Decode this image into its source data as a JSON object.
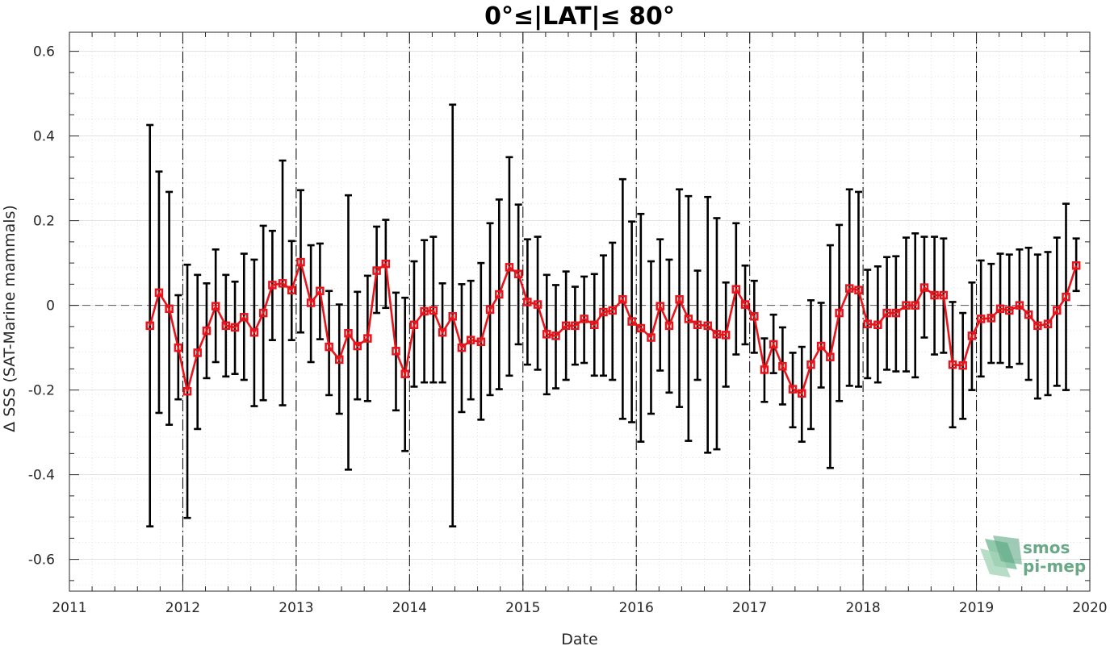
{
  "chart_data": {
    "type": "line",
    "title": "0°≤|LAT|≤ 80°",
    "xlabel": "Date",
    "ylabel": "Δ SSS (SAT-Marine mammals)",
    "xlim": [
      2011,
      2020
    ],
    "ylim": [
      -0.675,
      0.645
    ],
    "x_ticks": [
      2011,
      2012,
      2013,
      2014,
      2015,
      2016,
      2017,
      2018,
      2019,
      2020
    ],
    "x_tick_labels": [
      "2011",
      "2012",
      "2013",
      "2014",
      "2015",
      "2016",
      "2017",
      "2018",
      "2019",
      "2020"
    ],
    "y_ticks": [
      -0.6,
      -0.4,
      -0.2,
      0,
      0.2,
      0.4,
      0.6
    ],
    "y_tick_labels": [
      "-0.6",
      "-0.4",
      "-0.2",
      "0",
      "0.2",
      "0.4",
      "0.6"
    ],
    "grid": true,
    "minor_grid": true,
    "zero_line": true,
    "year_lines": [
      2012,
      2013,
      2014,
      2015,
      2016,
      2017,
      2018,
      2019
    ],
    "series": [
      {
        "color": "#e8141c",
        "errorbar_color": "#000000",
        "marker": "square",
        "x": [
          2011.71,
          2011.79,
          2011.88,
          2011.96,
          2012.04,
          2012.13,
          2012.21,
          2012.29,
          2012.38,
          2012.46,
          2012.54,
          2012.63,
          2012.71,
          2012.79,
          2012.88,
          2012.96,
          2013.04,
          2013.13,
          2013.21,
          2013.29,
          2013.38,
          2013.46,
          2013.54,
          2013.63,
          2013.71,
          2013.79,
          2013.88,
          2013.96,
          2014.04,
          2014.13,
          2014.21,
          2014.29,
          2014.38,
          2014.46,
          2014.54,
          2014.63,
          2014.71,
          2014.79,
          2014.88,
          2014.96,
          2015.04,
          2015.13,
          2015.21,
          2015.29,
          2015.38,
          2015.46,
          2015.54,
          2015.63,
          2015.71,
          2015.79,
          2015.88,
          2015.96,
          2016.04,
          2016.13,
          2016.21,
          2016.29,
          2016.38,
          2016.46,
          2016.54,
          2016.63,
          2016.71,
          2016.79,
          2016.88,
          2016.96,
          2017.04,
          2017.13,
          2017.21,
          2017.29,
          2017.38,
          2017.46,
          2017.54,
          2017.63,
          2017.71,
          2017.79,
          2017.88,
          2017.96,
          2018.04,
          2018.13,
          2018.21,
          2018.29,
          2018.38,
          2018.46,
          2018.54,
          2018.63,
          2018.71,
          2018.79,
          2018.88,
          2018.96,
          2019.04,
          2019.13,
          2019.21,
          2019.29,
          2019.38,
          2019.46,
          2019.54,
          2019.63,
          2019.71,
          2019.79,
          2019.88
        ],
        "y": [
          -0.048,
          0.03,
          -0.008,
          -0.1,
          -0.203,
          -0.112,
          -0.06,
          -0.002,
          -0.048,
          -0.052,
          -0.028,
          -0.064,
          -0.018,
          0.048,
          0.052,
          0.036,
          0.102,
          0.006,
          0.034,
          -0.098,
          -0.128,
          -0.066,
          -0.096,
          -0.078,
          0.082,
          0.098,
          -0.108,
          -0.162,
          -0.046,
          -0.014,
          -0.012,
          -0.064,
          -0.026,
          -0.1,
          -0.082,
          -0.086,
          -0.01,
          0.026,
          0.09,
          0.074,
          0.008,
          0.002,
          -0.068,
          -0.072,
          -0.048,
          -0.048,
          -0.032,
          -0.046,
          -0.016,
          -0.012,
          0.014,
          -0.038,
          -0.054,
          -0.076,
          -0.002,
          -0.048,
          0.014,
          -0.032,
          -0.046,
          -0.048,
          -0.068,
          -0.07,
          0.038,
          0.002,
          -0.026,
          -0.152,
          -0.092,
          -0.144,
          -0.198,
          -0.208,
          -0.14,
          -0.096,
          -0.122,
          -0.018,
          0.04,
          0.036,
          -0.044,
          -0.046,
          -0.018,
          -0.018,
          0,
          0,
          0.042,
          0.024,
          0.024,
          -0.14,
          -0.142,
          -0.072,
          -0.032,
          -0.03,
          -0.008,
          -0.012,
          0,
          -0.022,
          -0.048,
          -0.044,
          -0.012,
          0.02,
          0.094
        ],
        "err_low": [
          -0.522,
          -0.254,
          -0.282,
          -0.222,
          -0.502,
          -0.292,
          -0.172,
          -0.134,
          -0.168,
          -0.162,
          -0.176,
          -0.238,
          -0.224,
          -0.082,
          -0.236,
          -0.082,
          -0.064,
          -0.134,
          -0.08,
          -0.212,
          -0.256,
          -0.388,
          -0.222,
          -0.226,
          -0.018,
          -0.006,
          -0.248,
          -0.344,
          -0.192,
          -0.182,
          -0.182,
          -0.182,
          -0.522,
          -0.252,
          -0.222,
          -0.27,
          -0.212,
          -0.198,
          -0.166,
          -0.092,
          -0.14,
          -0.152,
          -0.21,
          -0.196,
          -0.176,
          -0.14,
          -0.136,
          -0.166,
          -0.166,
          -0.176,
          -0.268,
          -0.276,
          -0.322,
          -0.256,
          -0.154,
          -0.206,
          -0.24,
          -0.32,
          -0.176,
          -0.348,
          -0.34,
          -0.192,
          -0.116,
          -0.092,
          -0.112,
          -0.228,
          -0.16,
          -0.234,
          -0.288,
          -0.322,
          -0.292,
          -0.194,
          -0.384,
          -0.226,
          -0.19,
          -0.192,
          -0.172,
          -0.182,
          -0.152,
          -0.156,
          -0.156,
          -0.17,
          -0.076,
          -0.116,
          -0.112,
          -0.288,
          -0.268,
          -0.2,
          -0.168,
          -0.136,
          -0.136,
          -0.146,
          -0.138,
          -0.176,
          -0.22,
          -0.212,
          -0.19,
          -0.2,
          0.034
        ],
        "err_high": [
          0.426,
          0.316,
          0.268,
          0.024,
          0.096,
          0.072,
          0.052,
          0.132,
          0.072,
          0.056,
          0.122,
          0.108,
          0.188,
          0.176,
          0.342,
          0.152,
          0.272,
          0.142,
          0.146,
          0.034,
          0.002,
          0.26,
          0.032,
          0.07,
          0.186,
          0.202,
          0.03,
          0.018,
          0.104,
          0.154,
          0.162,
          0.052,
          0.474,
          0.05,
          0.058,
          0.1,
          0.194,
          0.25,
          0.35,
          0.238,
          0.156,
          0.162,
          0.072,
          0.048,
          0.08,
          0.044,
          0.068,
          0.074,
          0.118,
          0.148,
          0.298,
          0.198,
          0.216,
          0.104,
          0.156,
          0.108,
          0.274,
          0.258,
          0.082,
          0.256,
          0.206,
          0.054,
          0.194,
          0.094,
          0.058,
          -0.078,
          -0.022,
          -0.052,
          -0.112,
          -0.098,
          0.012,
          0.006,
          0.142,
          0.19,
          0.274,
          0.268,
          0.084,
          0.092,
          0.114,
          0.116,
          0.16,
          0.17,
          0.162,
          0.162,
          0.158,
          0.008,
          -0.018,
          0.054,
          0.106,
          0.098,
          0.122,
          0.12,
          0.132,
          0.136,
          0.12,
          0.126,
          0.16,
          0.24,
          0.158
        ]
      }
    ]
  },
  "logo": {
    "line1": "smos",
    "line2": "pi-mep"
  },
  "colors": {
    "series": "#e8141c",
    "errorbar": "#000000",
    "grid": "#d9d9d9",
    "axis": "#262626",
    "logo": "#6aa888"
  }
}
